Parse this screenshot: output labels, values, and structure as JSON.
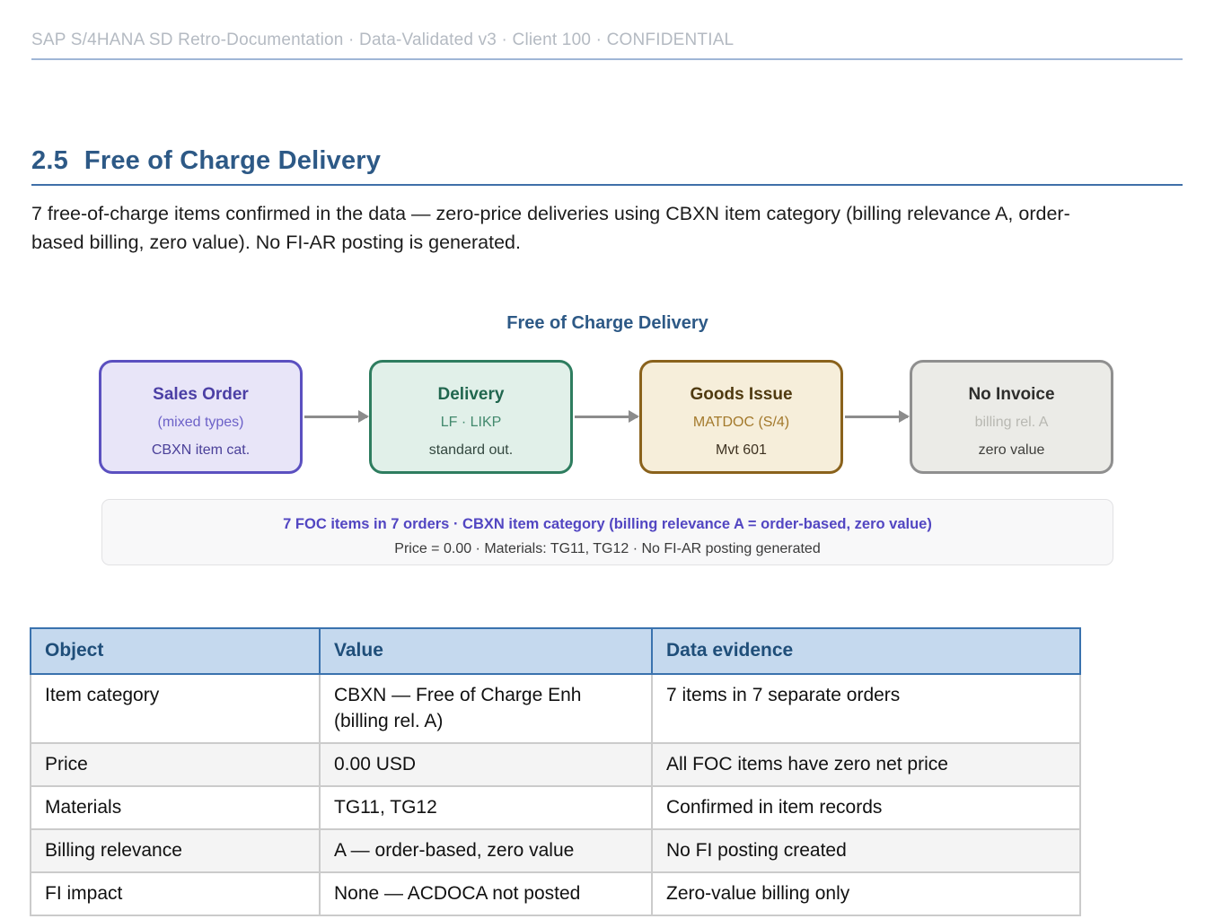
{
  "header": {
    "meta": "SAP S/4HANA SD Retro-Documentation · Data-Validated v3 · Client 100 · CONFIDENTIAL"
  },
  "section": {
    "number": "2.5",
    "title": "Free of Charge Delivery",
    "intro": "7 free-of-charge items confirmed in the data — zero-price deliveries using CBXN item category (billing relevance A, order-based billing, zero value). No FI-AR posting is generated."
  },
  "diagram": {
    "title": "Free of Charge Delivery",
    "nodes": [
      {
        "title": "Sales Order",
        "line2": "(mixed types)",
        "line3": "CBXN item cat.",
        "colors": {
          "bg": "#e8e5f8",
          "border": "#5b50c0",
          "title": "#4b3fa5",
          "line2": "#6c61c8",
          "line3": "#4a4099"
        }
      },
      {
        "title": "Delivery",
        "line2": "LF · LIKP",
        "line3": "standard out.",
        "colors": {
          "bg": "#e1f0e9",
          "border": "#2e7d5f",
          "title": "#20664e",
          "line2": "#42896d",
          "line3": "#33473f"
        }
      },
      {
        "title": "Goods Issue",
        "line2": "MATDOC (S/4)",
        "line3": "Mvt 601",
        "colors": {
          "bg": "#f6eeda",
          "border": "#8a621c",
          "title": "#4f3a10",
          "line2": "#a3792b",
          "line3": "#3f3322"
        }
      },
      {
        "title": "No Invoice",
        "line2": "billing rel. A",
        "line3": "zero value",
        "colors": {
          "bg": "#ebebe7",
          "border": "#8f8f8f",
          "title": "#2e2e2c",
          "line2": "#b8b8b2",
          "line3": "#3f3f3c"
        }
      }
    ],
    "note_line1": "7 FOC items in 7 orders · CBXN item category (billing relevance A = order-based, zero value)",
    "note_line2": "Price = 0.00 · Materials: TG11, TG12 · No FI-AR posting generated"
  },
  "table": {
    "headers": [
      "Object",
      "Value",
      "Data evidence"
    ],
    "rows": [
      [
        "Item category",
        "CBXN — Free of Charge Enh (billing rel. A)",
        "7 items in 7 separate orders"
      ],
      [
        "Price",
        "0.00 USD",
        "All FOC items have zero net price"
      ],
      [
        "Materials",
        "TG11, TG12",
        "Confirmed in item records"
      ],
      [
        "Billing relevance",
        "A — order-based, zero value",
        "No FI posting created"
      ],
      [
        "FI impact",
        "None — ACDOCA not posted",
        "Zero-value billing only"
      ]
    ]
  },
  "colors": {
    "heading_blue": "#2d5986",
    "rule_blue": "#3f6fa8",
    "header_meta_gray": "#b4bac2",
    "header_rule": "#9fb6d6",
    "note_accent": "#5246c2",
    "table_header_bg": "#c5d9ee",
    "table_header_text": "#1f4e79",
    "table_header_border": "#3a72ae",
    "table_body_border": "#cbcbcb",
    "table_alt_row": "#f4f4f4",
    "arrow_gray": "#8c8c8c"
  }
}
